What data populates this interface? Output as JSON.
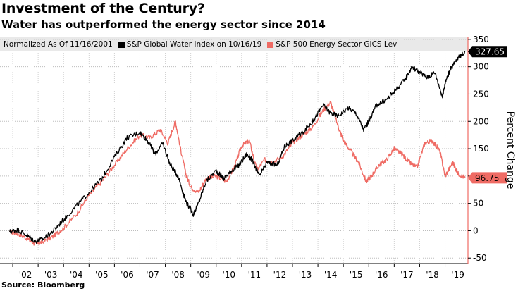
{
  "chart_data": {
    "type": "line",
    "title": "Investment of the Century?",
    "subtitle": "Water has outperformed the energy sector since 2014",
    "source": "Source: Bloomberg",
    "legend_note": "Normalized As Of 11/16/2001",
    "ylabel": "Percent Change",
    "ylim": [
      -60,
      355
    ],
    "xlim": [
      2001.5,
      2019.9
    ],
    "y_ticks": [
      -50,
      0,
      50,
      100,
      150,
      200,
      250,
      300,
      350
    ],
    "x_ticks": [
      {
        "label": "'02",
        "value": 2002.5
      },
      {
        "label": "'03",
        "value": 2003.5
      },
      {
        "label": "'04",
        "value": 2004.5
      },
      {
        "label": "'05",
        "value": 2005.5
      },
      {
        "label": "'06",
        "value": 2006.5
      },
      {
        "label": "'07",
        "value": 2007.5
      },
      {
        "label": "'08",
        "value": 2008.5
      },
      {
        "label": "'09",
        "value": 2009.5
      },
      {
        "label": "'10",
        "value": 2010.5
      },
      {
        "label": "'11",
        "value": 2011.5
      },
      {
        "label": "'12",
        "value": 2012.5
      },
      {
        "label": "'13",
        "value": 2013.5
      },
      {
        "label": "'14",
        "value": 2014.5
      },
      {
        "label": "'15",
        "value": 2015.5
      },
      {
        "label": "'16",
        "value": 2016.5
      },
      {
        "label": "'17",
        "value": 2017.5
      },
      {
        "label": "'18",
        "value": 2018.5
      },
      {
        "label": "'19",
        "value": 2019.5
      }
    ],
    "series": [
      {
        "name": "S&P Global Water Index on 10/16/19",
        "color": "#000000",
        "last_value": "327.65",
        "x": [
          2001.88,
          2002.2,
          2002.6,
          2002.9,
          2003.2,
          2003.6,
          2004.0,
          2004.5,
          2005.0,
          2005.5,
          2006.0,
          2006.5,
          2007.0,
          2007.3,
          2007.6,
          2007.9,
          2008.2,
          2008.5,
          2008.8,
          2009.1,
          2009.3,
          2009.6,
          2010.0,
          2010.3,
          2010.6,
          2010.9,
          2011.2,
          2011.4,
          2011.7,
          2012.0,
          2012.4,
          2012.7,
          2013.0,
          2013.4,
          2013.8,
          2014.2,
          2014.5,
          2014.8,
          2015.2,
          2015.5,
          2015.8,
          2016.0,
          2016.3,
          2016.7,
          2017.0,
          2017.4,
          2017.7,
          2018.0,
          2018.3,
          2018.6,
          2018.9,
          2019.0,
          2019.2,
          2019.5,
          2019.79
        ],
        "y": [
          -2,
          2,
          -10,
          -20,
          -15,
          0,
          20,
          45,
          70,
          95,
          135,
          170,
          180,
          165,
          140,
          160,
          120,
          100,
          55,
          30,
          50,
          90,
          110,
          95,
          110,
          120,
          140,
          130,
          100,
          125,
          120,
          155,
          165,
          180,
          200,
          230,
          215,
          210,
          225,
          215,
          185,
          200,
          230,
          240,
          255,
          275,
          300,
          290,
          280,
          290,
          245,
          270,
          295,
          315,
          327.65
        ]
      },
      {
        "name": "S&P 500 Energy Sector GICS Lev",
        "color": "#ef6b64",
        "last_value": "96.75",
        "x": [
          2001.88,
          2002.2,
          2002.6,
          2002.9,
          2003.2,
          2003.6,
          2004.0,
          2004.5,
          2005.0,
          2005.5,
          2006.0,
          2006.5,
          2007.0,
          2007.4,
          2007.8,
          2008.1,
          2008.4,
          2008.6,
          2008.8,
          2009.0,
          2009.3,
          2009.6,
          2010.0,
          2010.4,
          2010.7,
          2011.0,
          2011.3,
          2011.6,
          2011.9,
          2012.2,
          2012.6,
          2013.0,
          2013.4,
          2013.8,
          2014.2,
          2014.5,
          2014.8,
          2015.0,
          2015.3,
          2015.6,
          2015.9,
          2016.1,
          2016.4,
          2016.7,
          2017.0,
          2017.3,
          2017.6,
          2017.9,
          2018.2,
          2018.5,
          2018.8,
          2019.0,
          2019.3,
          2019.5,
          2019.79
        ],
        "y": [
          -2,
          -5,
          -15,
          -25,
          -20,
          -10,
          5,
          30,
          65,
          90,
          120,
          150,
          175,
          170,
          185,
          160,
          200,
          150,
          105,
          80,
          70,
          95,
          100,
          90,
          115,
          155,
          165,
          110,
          130,
          125,
          135,
          160,
          175,
          190,
          220,
          235,
          190,
          165,
          145,
          125,
          90,
          100,
          120,
          130,
          150,
          140,
          125,
          115,
          160,
          165,
          145,
          100,
          125,
          105,
          96.75
        ]
      }
    ]
  }
}
